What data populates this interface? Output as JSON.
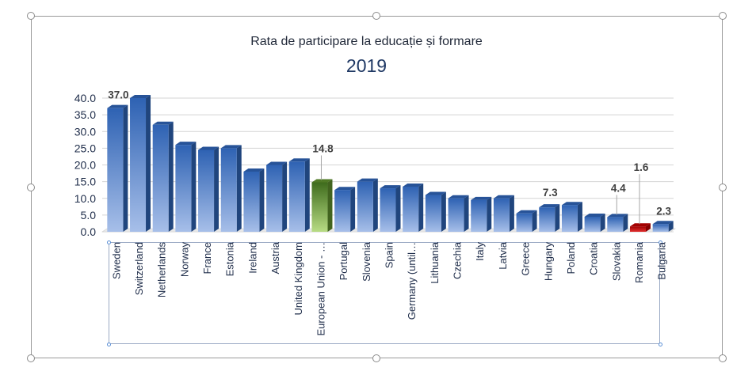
{
  "chart_data": {
    "type": "bar",
    "title": "Rata de participare la educație și formare",
    "subtitle": "2019",
    "xlabel": "",
    "ylabel": "",
    "ylim": [
      0,
      40
    ],
    "yticks": [
      "0.0",
      "5.0",
      "10.0",
      "15.0",
      "20.0",
      "25.0",
      "30.0",
      "35.0",
      "40.0"
    ],
    "grid": true,
    "categories": [
      "Sweden",
      "Switzerland",
      "Netherlands",
      "Norway",
      "France",
      "Estonia",
      "Ireland",
      "Austria",
      "United Kingdom",
      "European Union - …",
      "Portugal",
      "Slovenia",
      "Spain",
      "Germany (until…",
      "Lithuania",
      "Czechia",
      "Italy",
      "Latvia",
      "Greece",
      "Hungary",
      "Poland",
      "Croatia",
      "Slovakia",
      "Romania",
      "Bulgaria"
    ],
    "values": [
      37.0,
      40.0,
      32.0,
      26.0,
      24.5,
      25.0,
      18.0,
      20.0,
      21.0,
      14.8,
      12.5,
      15.0,
      13.0,
      13.5,
      11.0,
      10.0,
      9.5,
      10.0,
      5.5,
      7.3,
      8.0,
      4.5,
      4.4,
      1.6,
      2.3
    ],
    "data_labels": [
      {
        "category": "Sweden",
        "text": "37.0"
      },
      {
        "category": "European Union - …",
        "text": "14.8"
      },
      {
        "category": "Hungary",
        "text": "7.3"
      },
      {
        "category": "Slovakia",
        "text": "4.4"
      },
      {
        "category": "Romania",
        "text": "1.6"
      },
      {
        "category": "Bulgaria",
        "text": "2.3"
      }
    ],
    "highlight": {
      "European Union - …": "#5e8f2d",
      "Romania": "#c00000"
    },
    "colors": {
      "bar_top": "#2e62b3",
      "bar_bottom": "#a7bfe9",
      "gridline": "#d4d4d4",
      "axis_text": "#1f2d4a"
    }
  }
}
